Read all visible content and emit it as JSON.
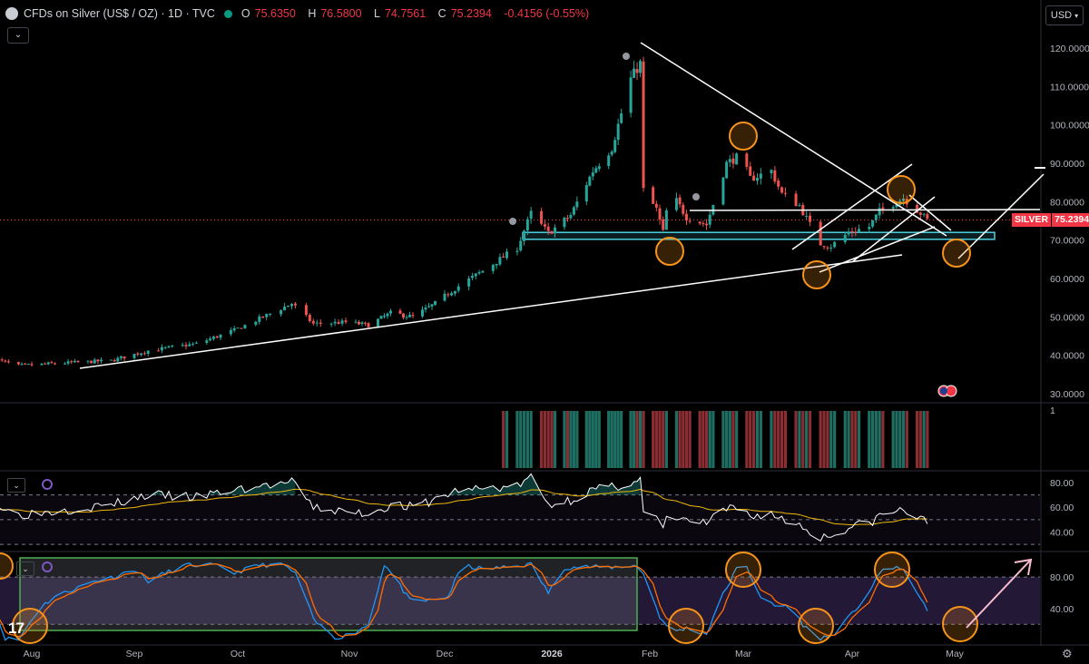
{
  "header": {
    "symbol": "CFDs on Silver (US$ / OZ) · 1D · TVC",
    "open_label": "O",
    "open": "75.6350",
    "high_label": "H",
    "high": "76.5800",
    "low_label": "L",
    "low": "74.7561",
    "close_label": "C",
    "close": "75.2394",
    "change": "-0.4156 (-0.55%)"
  },
  "currency_button": "USD",
  "price_tag": {
    "name": "SILVER",
    "value": "75.2394"
  },
  "volume_axis_label": "1",
  "colors": {
    "up": "#26a69a",
    "down": "#ef5350",
    "background": "#000000",
    "annotation": "#ffffff",
    "circle": "#f7931a",
    "support_zone": "#4dd0e1"
  },
  "chart_data": [
    {
      "type": "candlestick",
      "title": "CFDs on Silver (US$ / OZ) · 1D · TVC",
      "ylim": [
        28,
        126
      ],
      "y_ticks": [
        "120.0000",
        "110.0000",
        "100.0000",
        "90.0000",
        "80.0000",
        "70.0000",
        "60.0000",
        "50.0000",
        "40.0000",
        "30.0000"
      ],
      "y_tick_values": [
        120,
        110,
        100,
        90,
        80,
        70,
        60,
        50,
        40,
        30
      ],
      "x_ticks": [
        "Aug",
        "Sep",
        "Oct",
        "Nov",
        "Dec",
        "2026",
        "Feb",
        "Mar",
        "Apr",
        "May"
      ],
      "x_tick_dates": [
        "2025-08-01",
        "2025-09-01",
        "2025-10-01",
        "2025-11-01",
        "2025-12-01",
        "2026-01-01",
        "2026-02-01",
        "2026-03-01",
        "2026-04-01",
        "2026-05-01"
      ],
      "last_price": 75.2394,
      "price_anchors": [
        [
          "2025-07-21",
          38.9
        ],
        [
          "2025-07-28",
          37.3
        ],
        [
          "2025-08-11",
          38.0
        ],
        [
          "2025-08-25",
          38.6
        ],
        [
          "2025-09-05",
          41.2
        ],
        [
          "2025-09-19",
          43.0
        ],
        [
          "2025-09-30",
          46.5
        ],
        [
          "2025-10-10",
          50.8
        ],
        [
          "2025-10-16",
          53.5
        ],
        [
          "2025-10-22",
          48.2
        ],
        [
          "2025-10-31",
          48.6
        ],
        [
          "2025-11-07",
          47.9
        ],
        [
          "2025-11-14",
          51.0
        ],
        [
          "2025-11-21",
          50.0
        ],
        [
          "2025-11-28",
          53.5
        ],
        [
          "2025-12-05",
          58.0
        ],
        [
          "2025-12-12",
          62.0
        ],
        [
          "2025-12-22",
          68.0
        ],
        [
          "2025-12-26",
          77.0
        ],
        [
          "2025-12-31",
          71.8
        ],
        [
          "2026-01-07",
          76.5
        ],
        [
          "2026-01-14",
          88.0
        ],
        [
          "2026-01-20",
          94.0
        ],
        [
          "2026-01-26",
          112.0
        ],
        [
          "2026-01-29",
          116.0
        ],
        [
          "2026-01-30",
          83.0
        ],
        [
          "2026-02-03",
          78.0
        ],
        [
          "2026-02-05",
          72.0
        ],
        [
          "2026-02-07",
          83.0
        ],
        [
          "2026-02-12",
          76.0
        ],
        [
          "2026-02-18",
          74.0
        ],
        [
          "2026-02-24",
          90.0
        ],
        [
          "2026-02-28",
          92.0
        ],
        [
          "2026-03-03",
          86.0
        ],
        [
          "2026-03-09",
          88.0
        ],
        [
          "2026-03-12",
          82.0
        ],
        [
          "2026-03-17",
          79.0
        ],
        [
          "2026-03-20",
          74.0
        ],
        [
          "2026-03-23",
          69.0
        ],
        [
          "2026-03-26",
          68.5
        ],
        [
          "2026-03-31",
          72.0
        ],
        [
          "2026-04-06",
          73.5
        ],
        [
          "2026-04-09",
          77.5
        ],
        [
          "2026-04-13",
          79.5
        ],
        [
          "2026-04-16",
          81.0
        ],
        [
          "2026-04-21",
          77.0
        ],
        [
          "2026-04-23",
          75.2
        ]
      ],
      "volume_bars_from": "2025-12-18"
    },
    {
      "type": "line",
      "indicator": "RSI",
      "y_ticks": [
        "80.00",
        "60.00",
        "40.00"
      ],
      "y_tick_values": [
        80,
        60,
        40
      ],
      "ylim": [
        25,
        88
      ],
      "bands": [
        70,
        50,
        30
      ],
      "anchors": [
        [
          "2025-07-21",
          62
        ],
        [
          "2025-07-28",
          54
        ],
        [
          "2025-08-11",
          58
        ],
        [
          "2025-08-25",
          62
        ],
        [
          "2025-09-05",
          70
        ],
        [
          "2025-09-19",
          68
        ],
        [
          "2025-09-30",
          74
        ],
        [
          "2025-10-10",
          78
        ],
        [
          "2025-10-16",
          80
        ],
        [
          "2025-10-22",
          60
        ],
        [
          "2025-10-31",
          56
        ],
        [
          "2025-11-07",
          55
        ],
        [
          "2025-11-14",
          62
        ],
        [
          "2025-11-21",
          60
        ],
        [
          "2025-11-28",
          66
        ],
        [
          "2025-12-05",
          74
        ],
        [
          "2025-12-12",
          75
        ],
        [
          "2025-12-22",
          77
        ],
        [
          "2025-12-26",
          84
        ],
        [
          "2025-12-31",
          62
        ],
        [
          "2026-01-07",
          66
        ],
        [
          "2026-01-14",
          74
        ],
        [
          "2026-01-20",
          76
        ],
        [
          "2026-01-26",
          80
        ],
        [
          "2026-01-29",
          82
        ],
        [
          "2026-01-30",
          56
        ],
        [
          "2026-02-03",
          50
        ],
        [
          "2026-02-05",
          44
        ],
        [
          "2026-02-07",
          54
        ],
        [
          "2026-02-12",
          49
        ],
        [
          "2026-02-18",
          47
        ],
        [
          "2026-02-24",
          58
        ],
        [
          "2026-02-28",
          59
        ],
        [
          "2026-03-03",
          53
        ],
        [
          "2026-03-09",
          55
        ],
        [
          "2026-03-12",
          50
        ],
        [
          "2026-03-17",
          46
        ],
        [
          "2026-03-20",
          40
        ],
        [
          "2026-03-23",
          36
        ],
        [
          "2026-03-26",
          37
        ],
        [
          "2026-03-31",
          44
        ],
        [
          "2026-04-06",
          47
        ],
        [
          "2026-04-09",
          53
        ],
        [
          "2026-04-13",
          56
        ],
        [
          "2026-04-16",
          58
        ],
        [
          "2026-04-21",
          50
        ],
        [
          "2026-04-23",
          48
        ]
      ]
    },
    {
      "type": "line",
      "indicator": "Stochastic RSI",
      "y_ticks": [
        "80.00",
        "40.00"
      ],
      "y_tick_values": [
        80,
        40
      ],
      "ylim": [
        -5,
        110
      ],
      "bands": [
        80,
        20
      ],
      "anchors": [
        [
          "2025-07-21",
          35
        ],
        [
          "2025-07-24",
          2
        ],
        [
          "2025-07-28",
          0
        ],
        [
          "2025-08-03",
          40
        ],
        [
          "2025-08-08",
          55
        ],
        [
          "2025-08-14",
          65
        ],
        [
          "2025-08-20",
          75
        ],
        [
          "2025-08-26",
          80
        ],
        [
          "2025-09-01",
          90
        ],
        [
          "2025-09-05",
          75
        ],
        [
          "2025-09-10",
          85
        ],
        [
          "2025-09-16",
          95
        ],
        [
          "2025-09-24",
          95
        ],
        [
          "2025-09-30",
          85
        ],
        [
          "2025-10-07",
          95
        ],
        [
          "2025-10-14",
          95
        ],
        [
          "2025-10-18",
          80
        ],
        [
          "2025-10-22",
          25
        ],
        [
          "2025-10-28",
          3
        ],
        [
          "2025-11-02",
          8
        ],
        [
          "2025-11-07",
          20
        ],
        [
          "2025-11-12",
          96
        ],
        [
          "2025-11-16",
          75
        ],
        [
          "2025-11-20",
          50
        ],
        [
          "2025-11-26",
          50
        ],
        [
          "2025-12-02",
          55
        ],
        [
          "2025-12-06",
          95
        ],
        [
          "2025-12-12",
          90
        ],
        [
          "2025-12-18",
          92
        ],
        [
          "2025-12-26",
          96
        ],
        [
          "2025-12-31",
          60
        ],
        [
          "2026-01-05",
          92
        ],
        [
          "2026-01-12",
          93
        ],
        [
          "2026-01-19",
          92
        ],
        [
          "2026-01-27",
          95
        ],
        [
          "2026-01-30",
          85
        ],
        [
          "2026-02-04",
          30
        ],
        [
          "2026-02-07",
          10
        ],
        [
          "2026-02-12",
          15
        ],
        [
          "2026-02-18",
          8
        ],
        [
          "2026-02-22",
          50
        ],
        [
          "2026-02-27",
          90
        ],
        [
          "2026-03-02",
          92
        ],
        [
          "2026-03-06",
          55
        ],
        [
          "2026-03-10",
          42
        ],
        [
          "2026-03-14",
          45
        ],
        [
          "2026-03-18",
          20
        ],
        [
          "2026-03-22",
          2
        ],
        [
          "2026-03-26",
          5
        ],
        [
          "2026-03-31",
          28
        ],
        [
          "2026-04-05",
          55
        ],
        [
          "2026-04-10",
          90
        ],
        [
          "2026-04-14",
          93
        ],
        [
          "2026-04-18",
          80
        ],
        [
          "2026-04-23",
          35
        ]
      ]
    }
  ]
}
